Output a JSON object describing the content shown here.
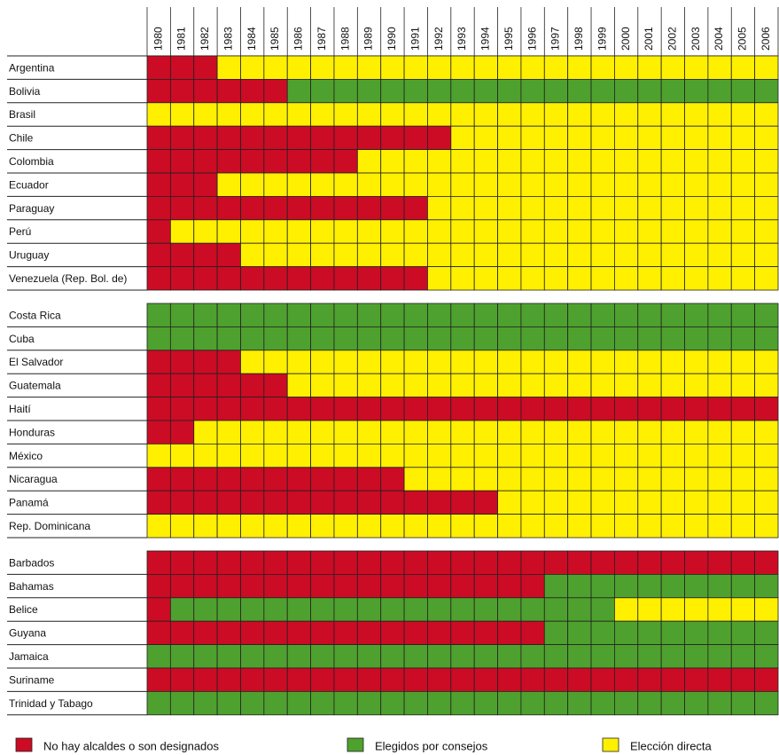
{
  "chart_data": {
    "type": "status_grid",
    "years": [
      1980,
      1981,
      1982,
      1983,
      1984,
      1985,
      1986,
      1987,
      1988,
      1989,
      1990,
      1991,
      1992,
      1993,
      1994,
      1995,
      1996,
      1997,
      1998,
      1999,
      2000,
      2001,
      2002,
      2003,
      2004,
      2005,
      2006
    ],
    "legend": [
      {
        "label": "No hay alcaldes o son designados",
        "color": "#cc0b25"
      },
      {
        "label": "Elegidos por consejos",
        "color": "#4ea12e"
      },
      {
        "label": "Elección directa",
        "color": "#fff000"
      }
    ],
    "groups": [
      {
        "rows": [
          {
            "name": "Argentina",
            "periods": [
              {
                "from": 1980,
                "status": 0
              },
              {
                "from": 1983,
                "status": 2
              }
            ]
          },
          {
            "name": "Bolivia",
            "periods": [
              {
                "from": 1980,
                "status": 0
              },
              {
                "from": 1986,
                "status": 1
              }
            ]
          },
          {
            "name": "Brasil",
            "periods": [
              {
                "from": 1980,
                "status": 2
              }
            ]
          },
          {
            "name": "Chile",
            "periods": [
              {
                "from": 1980,
                "status": 0
              },
              {
                "from": 1993,
                "status": 2
              }
            ]
          },
          {
            "name": "Colombia",
            "periods": [
              {
                "from": 1980,
                "status": 0
              },
              {
                "from": 1989,
                "status": 2
              }
            ]
          },
          {
            "name": "Ecuador",
            "periods": [
              {
                "from": 1980,
                "status": 0
              },
              {
                "from": 1983,
                "status": 2
              }
            ]
          },
          {
            "name": "Paraguay",
            "periods": [
              {
                "from": 1980,
                "status": 0
              },
              {
                "from": 1992,
                "status": 2
              }
            ]
          },
          {
            "name": "Perú",
            "periods": [
              {
                "from": 1980,
                "status": 0
              },
              {
                "from": 1981,
                "status": 2
              }
            ]
          },
          {
            "name": "Uruguay",
            "periods": [
              {
                "from": 1980,
                "status": 0
              },
              {
                "from": 1984,
                "status": 2
              }
            ]
          },
          {
            "name": "Venezuela (Rep. Bol. de)",
            "periods": [
              {
                "from": 1980,
                "status": 0
              },
              {
                "from": 1992,
                "status": 2
              }
            ]
          }
        ]
      },
      {
        "rows": [
          {
            "name": "Costa Rica",
            "periods": [
              {
                "from": 1980,
                "status": 1
              }
            ]
          },
          {
            "name": "Cuba",
            "periods": [
              {
                "from": 1980,
                "status": 1
              }
            ]
          },
          {
            "name": "El Salvador",
            "periods": [
              {
                "from": 1980,
                "status": 0
              },
              {
                "from": 1984,
                "status": 2
              }
            ]
          },
          {
            "name": "Guatemala",
            "periods": [
              {
                "from": 1980,
                "status": 0
              },
              {
                "from": 1986,
                "status": 2
              }
            ]
          },
          {
            "name": "Haití",
            "periods": [
              {
                "from": 1980,
                "status": 0
              }
            ]
          },
          {
            "name": "Honduras",
            "periods": [
              {
                "from": 1980,
                "status": 0
              },
              {
                "from": 1982,
                "status": 2
              }
            ]
          },
          {
            "name": "México",
            "periods": [
              {
                "from": 1980,
                "status": 2
              }
            ]
          },
          {
            "name": "Nicaragua",
            "periods": [
              {
                "from": 1980,
                "status": 0
              },
              {
                "from": 1991,
                "status": 2
              }
            ]
          },
          {
            "name": "Panamá",
            "periods": [
              {
                "from": 1980,
                "status": 0
              },
              {
                "from": 1995,
                "status": 2
              }
            ]
          },
          {
            "name": "Rep. Dominicana",
            "periods": [
              {
                "from": 1980,
                "status": 2
              }
            ]
          }
        ]
      },
      {
        "rows": [
          {
            "name": "Barbados",
            "periods": [
              {
                "from": 1980,
                "status": 0
              }
            ]
          },
          {
            "name": "Bahamas",
            "periods": [
              {
                "from": 1980,
                "status": 0
              },
              {
                "from": 1997,
                "status": 1
              }
            ]
          },
          {
            "name": "Belice",
            "periods": [
              {
                "from": 1980,
                "status": 0
              },
              {
                "from": 1981,
                "status": 1
              },
              {
                "from": 2000,
                "status": 2
              }
            ]
          },
          {
            "name": "Guyana",
            "periods": [
              {
                "from": 1980,
                "status": 0
              },
              {
                "from": 1997,
                "status": 1
              }
            ]
          },
          {
            "name": "Jamaica",
            "periods": [
              {
                "from": 1980,
                "status": 1
              }
            ]
          },
          {
            "name": "Suriname",
            "periods": [
              {
                "from": 1980,
                "status": 0
              }
            ]
          },
          {
            "name": "Trinidad y Tabago",
            "periods": [
              {
                "from": 1980,
                "status": 1
              }
            ]
          }
        ]
      }
    ]
  }
}
